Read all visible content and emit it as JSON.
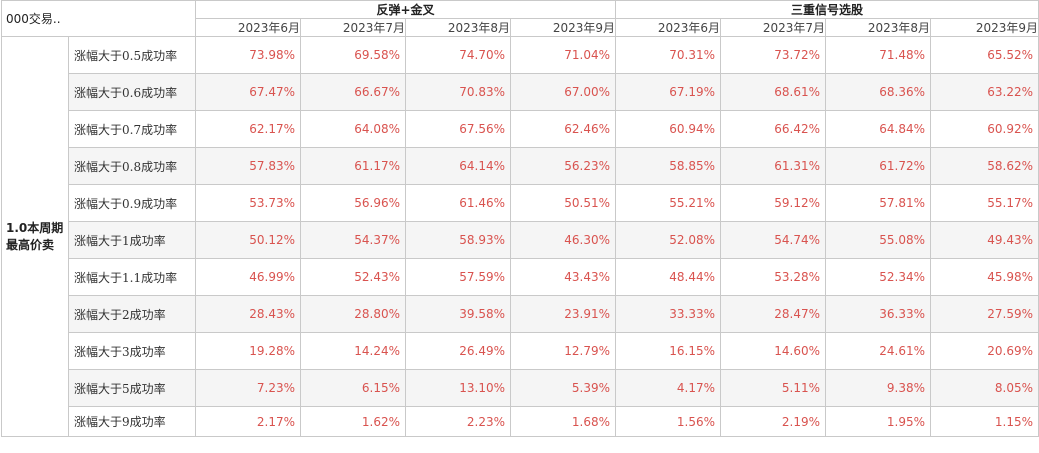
{
  "corner_label": "000交易..",
  "group_label_line1": "1.0本周期",
  "group_label_line2": "最高价卖",
  "col_groups": [
    "反弹+金叉",
    "三重信号选股"
  ],
  "months": [
    "2023年6月",
    "2023年7月",
    "2023年8月",
    "2023年9月"
  ],
  "rows": [
    {
      "label": "涨幅大于0.5成功率",
      "values": [
        "73.98%",
        "69.58%",
        "74.70%",
        "71.04%",
        "70.31%",
        "73.72%",
        "71.48%",
        "65.52%"
      ]
    },
    {
      "label": "涨幅大于0.6成功率",
      "values": [
        "67.47%",
        "66.67%",
        "70.83%",
        "67.00%",
        "67.19%",
        "68.61%",
        "68.36%",
        "63.22%"
      ]
    },
    {
      "label": "涨幅大于0.7成功率",
      "values": [
        "62.17%",
        "64.08%",
        "67.56%",
        "62.46%",
        "60.94%",
        "66.42%",
        "64.84%",
        "60.92%"
      ]
    },
    {
      "label": "涨幅大于0.8成功率",
      "values": [
        "57.83%",
        "61.17%",
        "64.14%",
        "56.23%",
        "58.85%",
        "61.31%",
        "61.72%",
        "58.62%"
      ]
    },
    {
      "label": "涨幅大于0.9成功率",
      "values": [
        "53.73%",
        "56.96%",
        "61.46%",
        "50.51%",
        "55.21%",
        "59.12%",
        "57.81%",
        "55.17%"
      ]
    },
    {
      "label": "涨幅大于1成功率",
      "values": [
        "50.12%",
        "54.37%",
        "58.93%",
        "46.30%",
        "52.08%",
        "54.74%",
        "55.08%",
        "49.43%"
      ]
    },
    {
      "label": "涨幅大于1.1成功率",
      "values": [
        "46.99%",
        "52.43%",
        "57.59%",
        "43.43%",
        "48.44%",
        "53.28%",
        "52.34%",
        "45.98%"
      ]
    },
    {
      "label": "涨幅大于2成功率",
      "values": [
        "28.43%",
        "28.80%",
        "39.58%",
        "23.91%",
        "33.33%",
        "28.47%",
        "36.33%",
        "27.59%"
      ]
    },
    {
      "label": "涨幅大于3成功率",
      "values": [
        "19.28%",
        "14.24%",
        "26.49%",
        "12.79%",
        "16.15%",
        "14.60%",
        "24.61%",
        "20.69%"
      ]
    },
    {
      "label": "涨幅大于5成功率",
      "values": [
        "7.23%",
        "6.15%",
        "13.10%",
        "5.39%",
        "4.17%",
        "5.11%",
        "9.38%",
        "8.05%"
      ]
    },
    {
      "label": "涨幅大于9成功率",
      "values": [
        "2.17%",
        "1.62%",
        "2.23%",
        "1.68%",
        "1.56%",
        "2.19%",
        "1.95%",
        "1.15%"
      ]
    }
  ]
}
